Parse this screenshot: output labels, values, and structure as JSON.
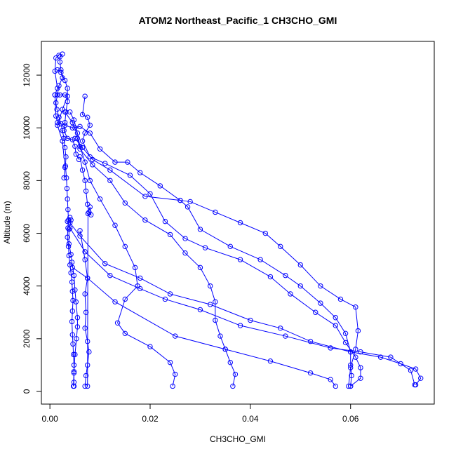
{
  "chart_data": {
    "type": "line",
    "title": "ATOM2 Northeast_Pacific_1 CH3CHO_GMI",
    "xlabel": "CH3CHO_GMI",
    "ylabel": "Altitude (m)",
    "xlim": [
      -0.0017,
      0.0767
    ],
    "ylim": [
      -480,
      13280
    ],
    "xticks": [
      0.0,
      0.02,
      0.04,
      0.06
    ],
    "xtick_labels": [
      "0.00",
      "0.02",
      "0.04",
      "0.06"
    ],
    "yticks": [
      0,
      2000,
      4000,
      6000,
      8000,
      10000,
      12000
    ],
    "ytick_labels": [
      "0",
      "2000",
      "4000",
      "6000",
      "8000",
      "10000",
      "12000"
    ],
    "grid": false,
    "color": "#0000ff",
    "series": [
      {
        "values": [
          [
            0.0025,
            12800
          ],
          [
            0.002,
            12700
          ],
          [
            0.002,
            12500
          ],
          [
            0.0022,
            12200
          ],
          [
            0.0025,
            11900
          ],
          [
            0.0018,
            11600
          ],
          [
            0.0015,
            11250
          ],
          [
            0.0012,
            10950
          ],
          [
            0.0014,
            10700
          ],
          [
            0.0018,
            10400
          ],
          [
            0.0022,
            10150
          ],
          [
            0.0025,
            9900
          ],
          [
            0.0028,
            9600
          ],
          [
            0.003,
            9250
          ],
          [
            0.0032,
            8900
          ],
          [
            0.0031,
            8550
          ],
          [
            0.0033,
            8100
          ],
          [
            0.0034,
            7700
          ],
          [
            0.0035,
            7300
          ],
          [
            0.0036,
            6900
          ],
          [
            0.0037,
            6500
          ],
          [
            0.0036,
            6200
          ],
          [
            0.0035,
            5850
          ],
          [
            0.0037,
            5500
          ],
          [
            0.0038,
            5150
          ],
          [
            0.004,
            4800
          ],
          [
            0.0042,
            4500
          ],
          [
            0.0044,
            4150
          ],
          [
            0.0045,
            3800
          ],
          [
            0.0046,
            3450
          ],
          [
            0.0045,
            3050
          ],
          [
            0.0044,
            2650
          ],
          [
            0.0045,
            2150
          ],
          [
            0.0046,
            1800
          ],
          [
            0.0047,
            1400
          ],
          [
            0.0048,
            1000
          ],
          [
            0.0048,
            700
          ],
          [
            0.0048,
            350
          ],
          [
            0.0048,
            200
          ]
        ]
      },
      {
        "values": [
          [
            0.0018,
            12750
          ],
          [
            0.0012,
            12650
          ],
          [
            0.001,
            12150
          ],
          [
            0.0015,
            11500
          ],
          [
            0.001,
            11250
          ],
          [
            0.0012,
            10450
          ],
          [
            0.0015,
            10200
          ],
          [
            0.003,
            10100
          ],
          [
            0.0045,
            10000
          ],
          [
            0.006,
            10050
          ],
          [
            0.008,
            9800
          ],
          [
            0.01,
            9200
          ],
          [
            0.013,
            8700
          ],
          [
            0.0155,
            8700
          ],
          [
            0.018,
            8300
          ],
          [
            0.022,
            7800
          ],
          [
            0.026,
            7250
          ],
          [
            0.0275,
            7000
          ],
          [
            0.03,
            6150
          ],
          [
            0.036,
            5500
          ],
          [
            0.042,
            5000
          ],
          [
            0.047,
            4400
          ],
          [
            0.05,
            4000
          ],
          [
            0.054,
            3350
          ],
          [
            0.057,
            2800
          ],
          [
            0.059,
            2200
          ],
          [
            0.06,
            1500
          ],
          [
            0.06,
            1000
          ],
          [
            0.0602,
            600
          ],
          [
            0.06,
            200
          ]
        ]
      },
      {
        "values": [
          [
            0.007,
            11200
          ],
          [
            0.0065,
            10500
          ],
          [
            0.0075,
            10400
          ],
          [
            0.008,
            10100
          ],
          [
            0.007,
            9800
          ],
          [
            0.0065,
            9500
          ],
          [
            0.008,
            8900
          ],
          [
            0.011,
            8650
          ],
          [
            0.016,
            8200
          ],
          [
            0.02,
            7500
          ],
          [
            0.023,
            6450
          ],
          [
            0.027,
            5800
          ],
          [
            0.031,
            5450
          ],
          [
            0.038,
            5000
          ],
          [
            0.044,
            4350
          ],
          [
            0.048,
            3700
          ],
          [
            0.053,
            3000
          ],
          [
            0.057,
            2500
          ],
          [
            0.059,
            1850
          ],
          [
            0.061,
            1300
          ],
          [
            0.062,
            900
          ],
          [
            0.062,
            500
          ],
          [
            0.06,
            200
          ]
        ]
      },
      {
        "values": [
          [
            0.003,
            10600
          ],
          [
            0.0045,
            10200
          ],
          [
            0.005,
            10000
          ],
          [
            0.0055,
            9600
          ],
          [
            0.006,
            9200
          ],
          [
            0.0085,
            8600
          ],
          [
            0.012,
            8000
          ],
          [
            0.015,
            7150
          ],
          [
            0.019,
            6500
          ],
          [
            0.024,
            5950
          ],
          [
            0.027,
            5250
          ],
          [
            0.03,
            4700
          ],
          [
            0.032,
            4000
          ],
          [
            0.033,
            3400
          ],
          [
            0.033,
            2700
          ],
          [
            0.034,
            2100
          ],
          [
            0.035,
            1600
          ],
          [
            0.036,
            1100
          ],
          [
            0.037,
            650
          ],
          [
            0.0365,
            200
          ]
        ]
      },
      {
        "values": [
          [
            0.004,
            10600
          ],
          [
            0.0048,
            10300
          ],
          [
            0.0055,
            9800
          ],
          [
            0.006,
            9300
          ],
          [
            0.007,
            8700
          ],
          [
            0.008,
            8000
          ],
          [
            0.01,
            7300
          ],
          [
            0.013,
            6300
          ],
          [
            0.015,
            5500
          ],
          [
            0.017,
            4700
          ],
          [
            0.0175,
            4000
          ],
          [
            0.015,
            3500
          ],
          [
            0.0135,
            2600
          ],
          [
            0.015,
            2200
          ],
          [
            0.02,
            1700
          ],
          [
            0.024,
            1100
          ],
          [
            0.025,
            650
          ],
          [
            0.0245,
            200
          ]
        ]
      },
      {
        "values": [
          [
            0.005,
            9600
          ],
          [
            0.0065,
            9250
          ],
          [
            0.0085,
            8800
          ],
          [
            0.012,
            8400
          ],
          [
            0.019,
            7400
          ],
          [
            0.026,
            7250
          ],
          [
            0.028,
            7200
          ],
          [
            0.033,
            6800
          ],
          [
            0.038,
            6400
          ],
          [
            0.043,
            6000
          ],
          [
            0.046,
            5500
          ],
          [
            0.05,
            4800
          ],
          [
            0.054,
            4000
          ],
          [
            0.058,
            3500
          ],
          [
            0.061,
            3200
          ],
          [
            0.0615,
            2300
          ],
          [
            0.061,
            1600
          ],
          [
            0.06,
            900
          ],
          [
            0.0596,
            200
          ]
        ]
      },
      {
        "values": [
          [
            0.004,
            6400
          ],
          [
            0.006,
            5900
          ],
          [
            0.011,
            4850
          ],
          [
            0.018,
            4300
          ],
          [
            0.024,
            3700
          ],
          [
            0.032,
            3300
          ],
          [
            0.04,
            2700
          ],
          [
            0.046,
            2400
          ],
          [
            0.052,
            1900
          ],
          [
            0.06,
            1500
          ],
          [
            0.066,
            1300
          ],
          [
            0.07,
            1050
          ],
          [
            0.073,
            850
          ],
          [
            0.074,
            500
          ],
          [
            0.073,
            250
          ]
        ]
      },
      {
        "values": [
          [
            0.004,
            6200
          ],
          [
            0.007,
            5300
          ],
          [
            0.012,
            4400
          ],
          [
            0.018,
            3900
          ],
          [
            0.023,
            3500
          ],
          [
            0.03,
            3100
          ],
          [
            0.038,
            2500
          ],
          [
            0.047,
            2100
          ],
          [
            0.056,
            1650
          ],
          [
            0.062,
            1500
          ],
          [
            0.068,
            1300
          ],
          [
            0.072,
            800
          ],
          [
            0.0728,
            250
          ]
        ]
      },
      {
        "values": [
          [
            0.0045,
            4700
          ],
          [
            0.0075,
            4300
          ],
          [
            0.013,
            3400
          ],
          [
            0.025,
            2100
          ],
          [
            0.035,
            1600
          ],
          [
            0.044,
            1150
          ],
          [
            0.052,
            700
          ],
          [
            0.056,
            450
          ],
          [
            0.057,
            200
          ]
        ]
      },
      {
        "values": [
          [
            0.006,
            6100
          ],
          [
            0.007,
            5000
          ],
          [
            0.0075,
            4300
          ],
          [
            0.007,
            3700
          ],
          [
            0.0072,
            3000
          ],
          [
            0.007,
            2400
          ],
          [
            0.0075,
            1900
          ],
          [
            0.0078,
            1500
          ],
          [
            0.0075,
            1000
          ],
          [
            0.0072,
            600
          ],
          [
            0.007,
            200
          ]
        ]
      },
      {
        "values": [
          [
            0.006,
            8900
          ],
          [
            0.0065,
            8400
          ],
          [
            0.007,
            8000
          ],
          [
            0.0072,
            7600
          ],
          [
            0.0075,
            7100
          ],
          [
            0.0078,
            6800
          ],
          [
            0.0082,
            6700
          ],
          [
            0.008,
            7000
          ],
          [
            0.0076,
            6750
          ],
          [
            0.0075,
            200
          ]
        ]
      },
      {
        "values": [
          [
            0.0035,
            6450
          ],
          [
            0.004,
            6600
          ],
          [
            0.0042,
            6500
          ],
          [
            0.0038,
            6150
          ],
          [
            0.0038,
            5600
          ],
          [
            0.0042,
            5200
          ],
          [
            0.0044,
            4900
          ],
          [
            0.0048,
            4400
          ],
          [
            0.005,
            3850
          ],
          [
            0.0052,
            3400
          ],
          [
            0.0055,
            2800
          ],
          [
            0.0055,
            2450
          ],
          [
            0.0053,
            2000
          ],
          [
            0.005,
            1400
          ],
          [
            0.0048,
            750
          ],
          [
            0.0047,
            200
          ]
        ]
      },
      {
        "values": [
          [
            0.001,
            11250
          ],
          [
            0.002,
            11250
          ],
          [
            0.003,
            11250
          ],
          [
            0.0035,
            11200
          ],
          [
            0.0025,
            10700
          ],
          [
            0.0015,
            10100
          ],
          [
            0.0025,
            9500
          ],
          [
            0.003,
            8500
          ],
          [
            0.0028,
            8100
          ]
        ]
      },
      {
        "values": [
          [
            0.0015,
            12200
          ],
          [
            0.0022,
            12100
          ],
          [
            0.003,
            11800
          ],
          [
            0.0035,
            11500
          ],
          [
            0.0035,
            11000
          ],
          [
            0.0032,
            10600
          ],
          [
            0.003,
            10200
          ],
          [
            0.0028,
            9900
          ],
          [
            0.0035,
            9600
          ],
          [
            0.0045,
            9550
          ],
          [
            0.005,
            9300
          ],
          [
            0.0052,
            9000
          ],
          [
            0.0058,
            8800
          ]
        ]
      }
    ]
  }
}
